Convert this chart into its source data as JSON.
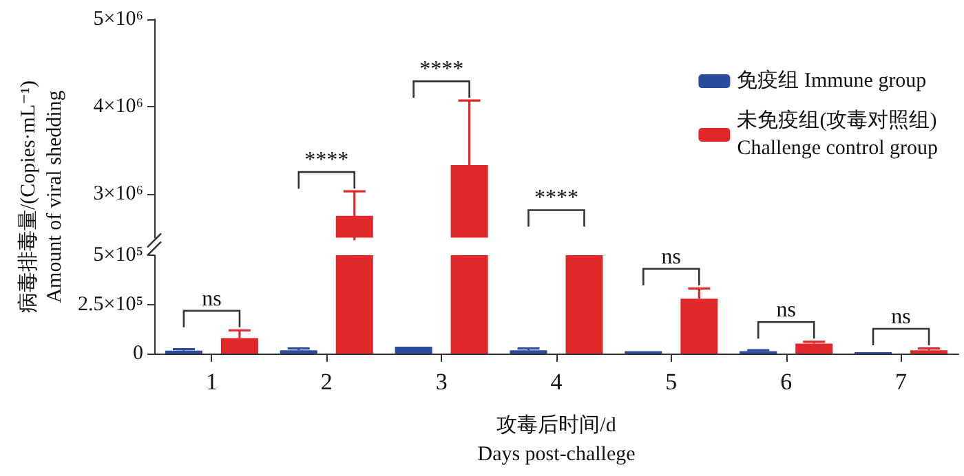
{
  "chart_data": [
    {
      "type": "bar",
      "ylabel": "病毒排毒量/(Copies·mL⁻¹)\nAmount of viral shedding",
      "categories": [
        "1",
        "2",
        "3",
        "4",
        "5",
        "6",
        "7"
      ],
      "series": [
        {
          "name": "免疫组 Immune group",
          "color": "#2b4c9e",
          "values": [
            null,
            null,
            null,
            null,
            null,
            null,
            null
          ]
        },
        {
          "name": "未免疫组(攻毒对照组)\nChallenge control group",
          "color": "#e0282a",
          "values": [
            null,
            2750000,
            3330000,
            null,
            null,
            null,
            null
          ],
          "errors": [
            null,
            280000,
            740000,
            null,
            null,
            null,
            null
          ]
        }
      ],
      "ylim": [
        2500000,
        5000000
      ],
      "yticks": [
        {
          "value": 3000000,
          "label": "3×10⁶"
        },
        {
          "value": 4000000,
          "label": "4×10⁶"
        },
        {
          "value": 5000000,
          "label": "5×10⁶"
        }
      ],
      "tick_labels": "y",
      "grid": false,
      "legend": "top right"
    },
    {
      "type": "bar",
      "xlabel": "攻毒后时间/d\nDays post-challege",
      "categories": [
        "1",
        "2",
        "3",
        "4",
        "5",
        "6",
        "7"
      ],
      "series": [
        {
          "color": "#2b4c9e",
          "values": [
            15000,
            17000,
            35000,
            17000,
            12000,
            12000,
            7000
          ],
          "errors": [
            [
              15000,
              22000
            ],
            [
              17000,
              26000
            ],
            null,
            [
              17000,
              26000
            ],
            null,
            [
              12000,
              17000
            ],
            null
          ]
        },
        {
          "color": "#e0282a",
          "values": [
            79000,
            500000,
            500000,
            500000,
            279000,
            51000,
            17000
          ],
          "errors": [
            [
              79000,
              118000
            ],
            null,
            null,
            null,
            [
              279000,
              331000
            ],
            [
              51000,
              60000
            ],
            [
              17000,
              26000
            ]
          ]
        }
      ],
      "ylim": [
        0,
        500000
      ],
      "yticks": [
        0,
        {
          "value": 250000,
          "label": "2.5×10⁵"
        },
        {
          "value": 500000,
          "label": "5×10⁵"
        }
      ],
      "annotations": [
        "ns",
        "****",
        "****",
        "****",
        "ns",
        "ns",
        "ns"
      ],
      "grid": false
    }
  ]
}
